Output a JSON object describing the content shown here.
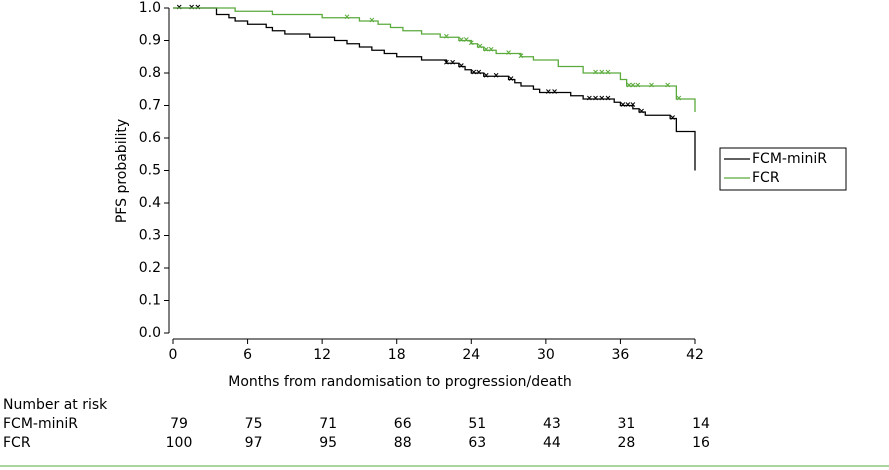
{
  "chart_data": {
    "type": "km",
    "xlabel": "Months from randomisation to progression/death",
    "ylabel": "PFS probability",
    "xlim": [
      0,
      42
    ],
    "xticks": [
      0,
      6,
      12,
      18,
      24,
      30,
      36,
      42
    ],
    "ylim": [
      0,
      1
    ],
    "yticks": [
      {
        "value": 0,
        "label": "0.0"
      },
      0.1,
      0.2,
      0.3,
      0.4,
      0.5,
      0.6,
      0.7,
      0.8,
      0.9,
      {
        "value": 1,
        "label": "1.0"
      }
    ],
    "series": [
      {
        "name": "FCM-miniR",
        "color": "#000000",
        "x": [
          0,
          3.5,
          4.5,
          5,
          6,
          7.5,
          8,
          9,
          11,
          13,
          14,
          15,
          16,
          17,
          18,
          20,
          22,
          23,
          23.5,
          24,
          25,
          27,
          27.5,
          28,
          29,
          29.5,
          32,
          33,
          35.5,
          36,
          37,
          37.5,
          38,
          40,
          40.5,
          42
        ],
        "values": [
          1,
          0.98,
          0.97,
          0.96,
          0.95,
          0.94,
          0.93,
          0.92,
          0.91,
          0.9,
          0.89,
          0.88,
          0.87,
          0.86,
          0.85,
          0.84,
          0.83,
          0.82,
          0.81,
          0.8,
          0.79,
          0.78,
          0.77,
          0.76,
          0.75,
          0.74,
          0.73,
          0.72,
          0.71,
          0.7,
          0.69,
          0.68,
          0.67,
          0.66,
          0.62,
          0.5
        ],
        "censored": {
          "x": [
            0.5,
            1.5,
            2,
            22,
            22.5,
            23.2,
            24.2,
            24.6,
            25.2,
            26,
            27.2,
            30.2,
            30.7,
            33.5,
            34,
            34.5,
            35,
            36.2,
            36.6,
            37,
            37.7,
            40.2
          ],
          "values": [
            1,
            1,
            1,
            0.83,
            0.83,
            0.82,
            0.8,
            0.8,
            0.79,
            0.79,
            0.78,
            0.74,
            0.74,
            0.72,
            0.72,
            0.72,
            0.72,
            0.7,
            0.7,
            0.7,
            0.68,
            0.66
          ]
        }
      },
      {
        "name": "FCR",
        "color": "#5aaa3c",
        "x": [
          0,
          5,
          8,
          12,
          15,
          16.5,
          17.5,
          18.5,
          20,
          21.5,
          23,
          24,
          24.5,
          25,
          26,
          28,
          29,
          31,
          33,
          36,
          36.5,
          40.5,
          42
        ],
        "values": [
          1,
          0.99,
          0.98,
          0.97,
          0.96,
          0.95,
          0.94,
          0.93,
          0.92,
          0.91,
          0.9,
          0.89,
          0.88,
          0.87,
          0.86,
          0.85,
          0.84,
          0.82,
          0.8,
          0.78,
          0.76,
          0.72,
          0.68
        ],
        "censored": {
          "x": [
            14,
            16,
            22,
            23.2,
            23.6,
            24,
            24.7,
            25.2,
            25.6,
            27,
            28,
            34,
            34.5,
            35,
            36.7,
            37,
            37.4,
            38.5,
            39.8,
            40.7
          ],
          "values": [
            0.97,
            0.96,
            0.91,
            0.9,
            0.9,
            0.89,
            0.88,
            0.87,
            0.87,
            0.86,
            0.85,
            0.8,
            0.8,
            0.8,
            0.76,
            0.76,
            0.76,
            0.76,
            0.76,
            0.72
          ]
        }
      }
    ],
    "at_risk": {
      "title": "Number at risk",
      "rows": [
        {
          "name": "FCM-miniR",
          "values": [
            79,
            75,
            71,
            66,
            51,
            43,
            31,
            14
          ]
        },
        {
          "name": "FCR",
          "values": [
            100,
            97,
            95,
            88,
            63,
            44,
            28,
            16
          ]
        }
      ]
    }
  }
}
